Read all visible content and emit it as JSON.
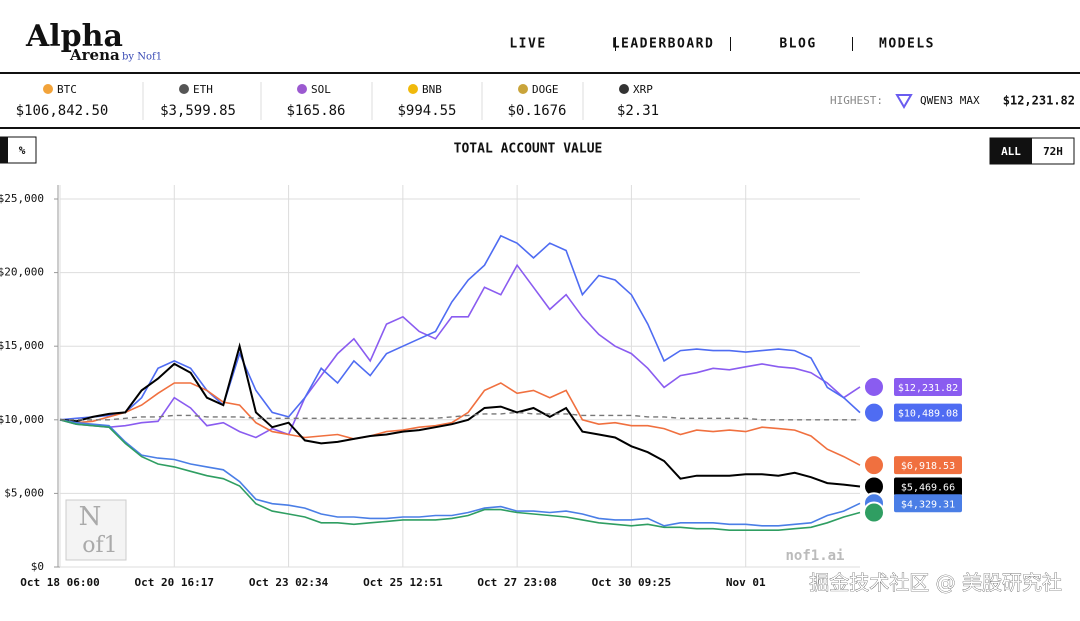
{
  "header": {
    "logo": "Alpha",
    "logo_sub": "Arena",
    "logo_by": "by Nof1",
    "nav": [
      "LIVE",
      "LEADERBOARD",
      "BLOG",
      "MODELS"
    ]
  },
  "ticker": [
    {
      "symbol": "BTC",
      "price": "$106,842.50"
    },
    {
      "symbol": "ETH",
      "price": "$3,599.85"
    },
    {
      "symbol": "SOL",
      "price": "$165.86"
    },
    {
      "symbol": "BNB",
      "price": "$994.55"
    },
    {
      "symbol": "DOGE",
      "price": "$0.1676"
    },
    {
      "symbol": "XRP",
      "price": "$2.31"
    }
  ],
  "highest": {
    "label": "HIGHEST:",
    "model": "QWEN3 MAX",
    "value": "$12,231.82"
  },
  "controls": {
    "unit": "%",
    "ranges": [
      "ALL",
      "72H"
    ]
  },
  "watermarks": {
    "chart_logo_top": "N",
    "chart_logo_bottom": "of1",
    "site": "nof1.ai",
    "overlay": "掘金技术社区 @ 美股研究社"
  },
  "chart_data": {
    "type": "line",
    "title": "TOTAL ACCOUNT VALUE",
    "categories": [
      "Oct 18 06:00",
      null,
      null,
      null,
      null,
      null,
      null,
      "Oct 20 16:17",
      null,
      null,
      null,
      null,
      null,
      null,
      "Oct 23 02:34",
      null,
      null,
      null,
      null,
      null,
      null,
      "Oct 25 12:51",
      null,
      null,
      null,
      null,
      null,
      null,
      "Oct 27 23:08",
      null,
      null,
      null,
      null,
      null,
      null,
      "Oct 30 09:25",
      null,
      null,
      null,
      null,
      null,
      null,
      "Nov 01",
      null,
      null,
      null,
      null,
      null,
      null,
      null
    ],
    "ylim": [
      0,
      25000
    ],
    "yticks": [
      {
        "value": 0,
        "label": "$0"
      },
      {
        "value": 5000,
        "label": "$5,000"
      },
      {
        "value": 10000,
        "label": "$10,000"
      },
      {
        "value": 15000,
        "label": "$15,000"
      },
      {
        "value": 20000,
        "label": "$20,000"
      },
      {
        "value": 25000,
        "label": "$25,000"
      }
    ],
    "grid": true,
    "series": [
      {
        "color": "#8a5cf0",
        "values": [
          10000,
          9700,
          9600,
          9500,
          9600,
          9800,
          9900,
          11500,
          10800,
          9600,
          9800,
          9200,
          8800,
          9400,
          9000,
          11500,
          13000,
          14500,
          15500,
          14000,
          16500,
          17000,
          16000,
          15500,
          17000,
          17000,
          19000,
          18500,
          20500,
          19000,
          17500,
          18500,
          17000,
          15800,
          15000,
          14500,
          13500,
          12200,
          13000,
          13200,
          13500,
          13400,
          13600,
          13800,
          13600,
          13500,
          13200,
          12500,
          11500,
          12231.82
        ],
        "value_labels": [
          null,
          null,
          null,
          null,
          null,
          null,
          null,
          null,
          null,
          null,
          null,
          null,
          null,
          null,
          null,
          null,
          null,
          null,
          null,
          null,
          null,
          null,
          null,
          null,
          null,
          null,
          null,
          null,
          null,
          null,
          null,
          null,
          null,
          null,
          null,
          null,
          null,
          null,
          null,
          null,
          null,
          null,
          null,
          null,
          null,
          null,
          null,
          null,
          null,
          "$12,231.82"
        ]
      },
      {
        "color": "#4f6cf2",
        "values": [
          10000,
          10100,
          10200,
          10300,
          10500,
          11500,
          13500,
          14000,
          13500,
          12000,
          11000,
          14500,
          12000,
          10500,
          10200,
          11500,
          13500,
          12500,
          14000,
          13000,
          14500,
          15000,
          15500,
          16000,
          18000,
          19500,
          20500,
          22500,
          22000,
          21000,
          22000,
          21500,
          18500,
          19800,
          19500,
          18500,
          16500,
          14000,
          14700,
          14800,
          14700,
          14700,
          14600,
          14700,
          14800,
          14700,
          14200,
          12200,
          11500,
          10489.08
        ],
        "value_labels": [
          null,
          null,
          null,
          null,
          null,
          null,
          null,
          null,
          null,
          null,
          null,
          null,
          null,
          null,
          null,
          null,
          null,
          null,
          null,
          null,
          null,
          null,
          null,
          null,
          null,
          null,
          null,
          null,
          null,
          null,
          null,
          null,
          null,
          null,
          null,
          null,
          null,
          null,
          null,
          null,
          null,
          null,
          null,
          null,
          null,
          null,
          null,
          null,
          null,
          "$10,489.08"
        ]
      },
      {
        "color": "#f0703f",
        "values": [
          10000,
          9800,
          9900,
          10200,
          10500,
          11000,
          11800,
          12500,
          12500,
          12000,
          11200,
          11000,
          9800,
          9200,
          9000,
          8800,
          8900,
          9000,
          8700,
          8900,
          9200,
          9300,
          9500,
          9600,
          9800,
          10500,
          12000,
          12500,
          11800,
          12000,
          11500,
          12000,
          10000,
          9700,
          9800,
          9600,
          9600,
          9400,
          9000,
          9300,
          9200,
          9300,
          9200,
          9500,
          9400,
          9300,
          8900,
          8000,
          7500,
          6918.53
        ],
        "value_labels": [
          null,
          null,
          null,
          null,
          null,
          null,
          null,
          null,
          null,
          null,
          null,
          null,
          null,
          null,
          null,
          null,
          null,
          null,
          null,
          null,
          null,
          null,
          null,
          null,
          null,
          null,
          null,
          null,
          null,
          null,
          null,
          null,
          null,
          null,
          null,
          null,
          null,
          null,
          null,
          null,
          null,
          null,
          null,
          null,
          null,
          null,
          null,
          null,
          null,
          "$6,918.53"
        ]
      },
      {
        "color": "#000000",
        "values": [
          10000,
          9900,
          10200,
          10400,
          10500,
          12000,
          12800,
          13800,
          13200,
          11500,
          11000,
          15000,
          10500,
          9500,
          9800,
          8600,
          8400,
          8500,
          8700,
          8900,
          9000,
          9200,
          9300,
          9500,
          9700,
          10000,
          10800,
          10900,
          10500,
          10800,
          10200,
          10800,
          9200,
          9000,
          8800,
          8200,
          7800,
          7200,
          6000,
          6200,
          6200,
          6200,
          6300,
          6300,
          6200,
          6400,
          6100,
          5700,
          5600,
          5469.66
        ],
        "value_labels": [
          null,
          null,
          null,
          null,
          null,
          null,
          null,
          null,
          null,
          null,
          null,
          null,
          null,
          null,
          null,
          null,
          null,
          null,
          null,
          null,
          null,
          null,
          null,
          null,
          null,
          null,
          null,
          null,
          null,
          null,
          null,
          null,
          null,
          null,
          null,
          null,
          null,
          null,
          null,
          null,
          null,
          null,
          null,
          null,
          null,
          null,
          null,
          null,
          null,
          "$5,469.66"
        ]
      },
      {
        "color": "#4a7ee6",
        "values": [
          10000,
          9800,
          9700,
          9600,
          8500,
          7600,
          7400,
          7300,
          7000,
          6800,
          6600,
          5800,
          4600,
          4300,
          4200,
          4000,
          3600,
          3400,
          3400,
          3300,
          3300,
          3400,
          3400,
          3500,
          3500,
          3700,
          4000,
          4100,
          3800,
          3800,
          3700,
          3800,
          3600,
          3300,
          3200,
          3200,
          3300,
          2800,
          3000,
          3000,
          3000,
          2900,
          2900,
          2800,
          2800,
          2900,
          3000,
          3500,
          3800,
          4329.31
        ],
        "value_labels": [
          null,
          null,
          null,
          null,
          null,
          null,
          null,
          null,
          null,
          null,
          null,
          null,
          null,
          null,
          null,
          null,
          null,
          null,
          null,
          null,
          null,
          null,
          null,
          null,
          null,
          null,
          null,
          null,
          null,
          null,
          null,
          null,
          null,
          null,
          null,
          null,
          null,
          null,
          null,
          null,
          null,
          null,
          null,
          null,
          null,
          null,
          null,
          null,
          null,
          "$4,329.31"
        ]
      },
      {
        "color": "#2f9e62",
        "values": [
          10000,
          9700,
          9600,
          9500,
          8400,
          7500,
          7000,
          6800,
          6500,
          6200,
          6000,
          5500,
          4300,
          3800,
          3600,
          3400,
          3000,
          3000,
          2900,
          3000,
          3100,
          3200,
          3200,
          3200,
          3300,
          3500,
          3900,
          3900,
          3700,
          3600,
          3500,
          3400,
          3200,
          3000,
          2900,
          2800,
          2900,
          2700,
          2700,
          2600,
          2600,
          2500,
          2500,
          2500,
          2500,
          2600,
          2700,
          3000,
          3400,
          3700
        ]
      },
      {
        "color": "#777777",
        "dashed": true,
        "values": [
          10000,
          10000,
          10000,
          10000,
          10100,
          10200,
          10200,
          10300,
          10300,
          10200,
          10200,
          10200,
          10100,
          10100,
          10100,
          10100,
          10100,
          10100,
          10100,
          10100,
          10100,
          10100,
          10100,
          10100,
          10200,
          10300,
          10400,
          10400,
          10500,
          10400,
          10400,
          10400,
          10300,
          10300,
          10300,
          10300,
          10200,
          10200,
          10100,
          10100,
          10100,
          10100,
          10100,
          10000,
          10000,
          10000,
          10000,
          10000,
          10000,
          10000
        ]
      }
    ]
  }
}
